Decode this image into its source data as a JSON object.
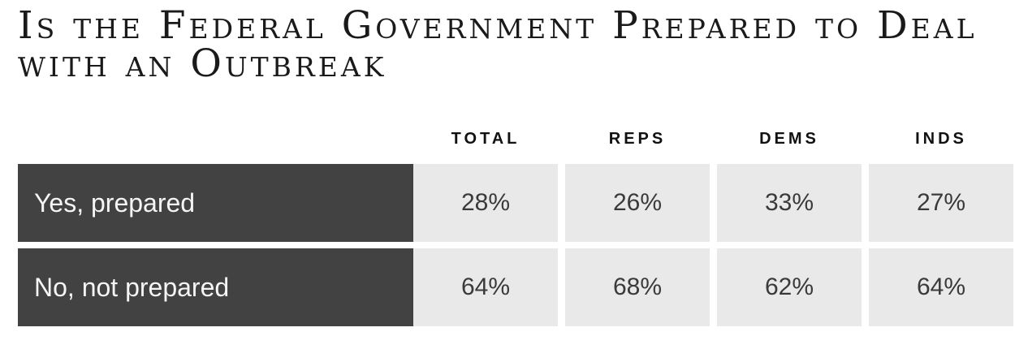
{
  "chart_data": {
    "type": "table",
    "title": "Is the Federal Government Prepared to Deal with an Outbreak",
    "columns": [
      "TOTAL",
      "REPS",
      "DEMS",
      "INDS"
    ],
    "rows": [
      {
        "label": "Yes, prepared",
        "values": [
          "28%",
          "26%",
          "33%",
          "27%"
        ]
      },
      {
        "label": "No, not prepared",
        "values": [
          "64%",
          "68%",
          "62%",
          "64%"
        ]
      }
    ]
  }
}
